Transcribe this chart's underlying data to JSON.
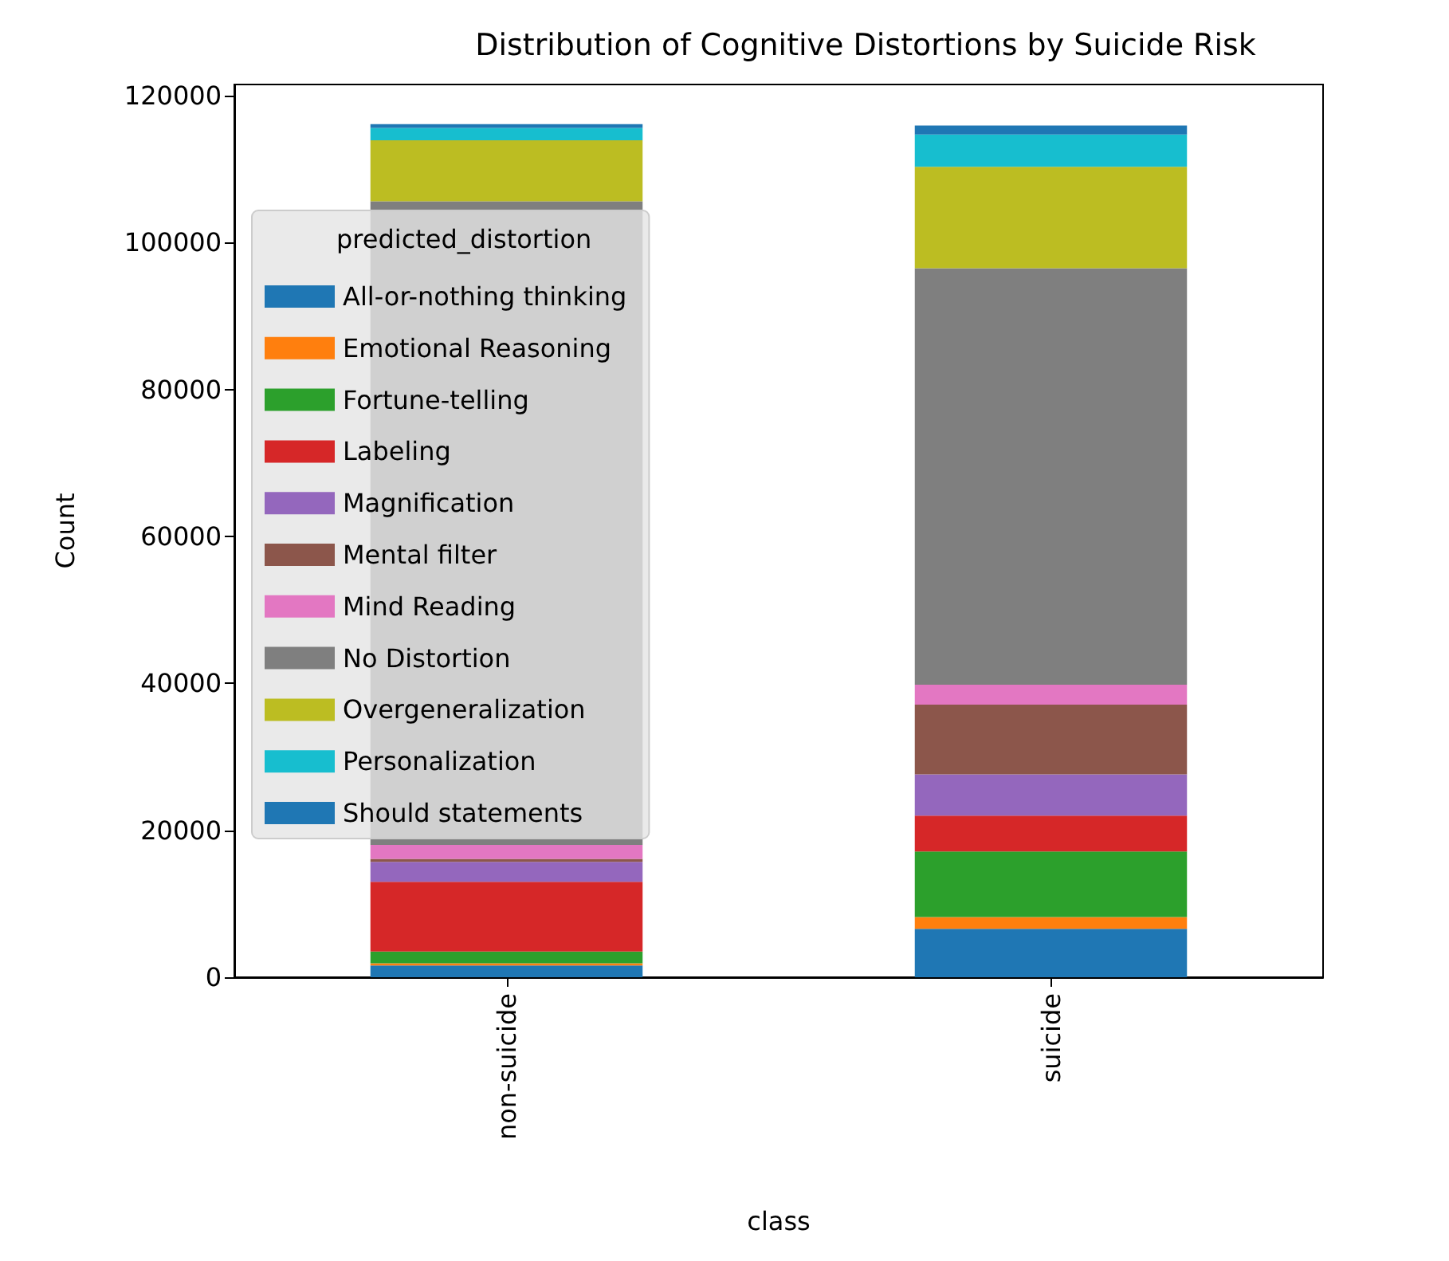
{
  "chart_data": {
    "type": "bar",
    "title": "Distribution of Cognitive Distortions by Suicide Risk",
    "xlabel": "class",
    "ylabel": "Count",
    "legend_title": "predicted_distortion",
    "categories": [
      "non-suicide",
      "suicide"
    ],
    "stacked": true,
    "series": [
      {
        "name": "All-or-nothing thinking",
        "color": "#1f77b4",
        "values": [
          1600,
          6600
        ]
      },
      {
        "name": "Emotional Reasoning",
        "color": "#ff7f0e",
        "values": [
          300,
          1600
        ]
      },
      {
        "name": "Fortune-telling",
        "color": "#2ca02c",
        "values": [
          1600,
          8900
        ]
      },
      {
        "name": "Labeling",
        "color": "#d62728",
        "values": [
          9500,
          4900
        ]
      },
      {
        "name": "Magnification",
        "color": "#9467bd",
        "values": [
          2700,
          5600
        ]
      },
      {
        "name": "Mental filter",
        "color": "#8c564b",
        "values": [
          400,
          9500
        ]
      },
      {
        "name": "Mind Reading",
        "color": "#e377c2",
        "values": [
          1900,
          2700
        ]
      },
      {
        "name": "No Distortion",
        "color": "#7f7f7f",
        "values": [
          87600,
          56700
        ]
      },
      {
        "name": "Overgeneralization",
        "color": "#bcbd22",
        "values": [
          8300,
          13800
        ]
      },
      {
        "name": "Personalization",
        "color": "#17becf",
        "values": [
          1700,
          4400
        ]
      },
      {
        "name": "Should statements",
        "color": "#1f77b4",
        "values": [
          500,
          1200
        ]
      }
    ],
    "ylim": [
      0,
      121500
    ],
    "yticks": [
      0,
      20000,
      40000,
      60000,
      80000,
      100000,
      120000
    ],
    "grid": false,
    "legend": "left"
  }
}
